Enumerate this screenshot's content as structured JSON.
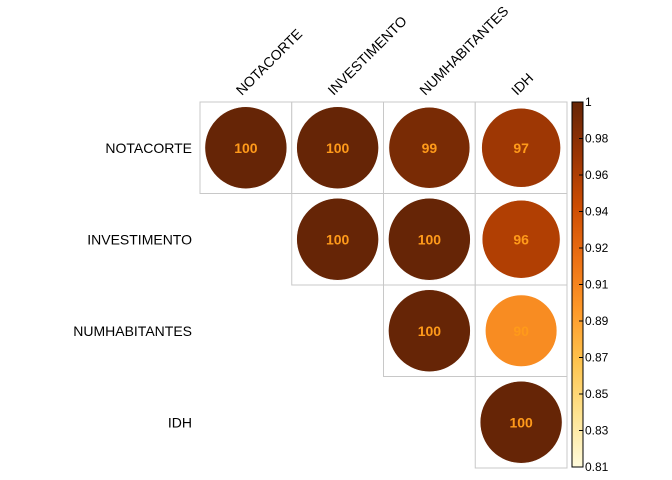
{
  "chart_data": {
    "type": "heatmap",
    "subtype": "correlation-upper-circles",
    "variables": [
      "NOTACORTE",
      "INVESTIMENTO",
      "NUMHABITANTES",
      "IDH"
    ],
    "cells": [
      {
        "row": 0,
        "col": 0,
        "value": 1.0,
        "label": "100"
      },
      {
        "row": 0,
        "col": 1,
        "value": 1.0,
        "label": "100"
      },
      {
        "row": 0,
        "col": 2,
        "value": 0.99,
        "label": "99"
      },
      {
        "row": 0,
        "col": 3,
        "value": 0.97,
        "label": "97"
      },
      {
        "row": 1,
        "col": 1,
        "value": 1.0,
        "label": "100"
      },
      {
        "row": 1,
        "col": 2,
        "value": 1.0,
        "label": "100"
      },
      {
        "row": 1,
        "col": 3,
        "value": 0.96,
        "label": "96"
      },
      {
        "row": 2,
        "col": 2,
        "value": 1.0,
        "label": "100"
      },
      {
        "row": 2,
        "col": 3,
        "value": 0.9,
        "label": "90"
      },
      {
        "row": 3,
        "col": 3,
        "value": 1.0,
        "label": "100"
      }
    ],
    "colorbar": {
      "min": 0.81,
      "max": 1,
      "ticks": [
        "1",
        "0.98",
        "0.96",
        "0.94",
        "0.92",
        "0.91",
        "0.89",
        "0.87",
        "0.85",
        "0.83",
        "0.81"
      ],
      "palette": [
        "#fffbdc",
        "#fee391",
        "#fec44f",
        "#fe9929",
        "#ec7014",
        "#cc4c02",
        "#993404",
        "#662506"
      ]
    },
    "label_color": "#ff9a1a",
    "grid": true,
    "legend_position": "right"
  }
}
